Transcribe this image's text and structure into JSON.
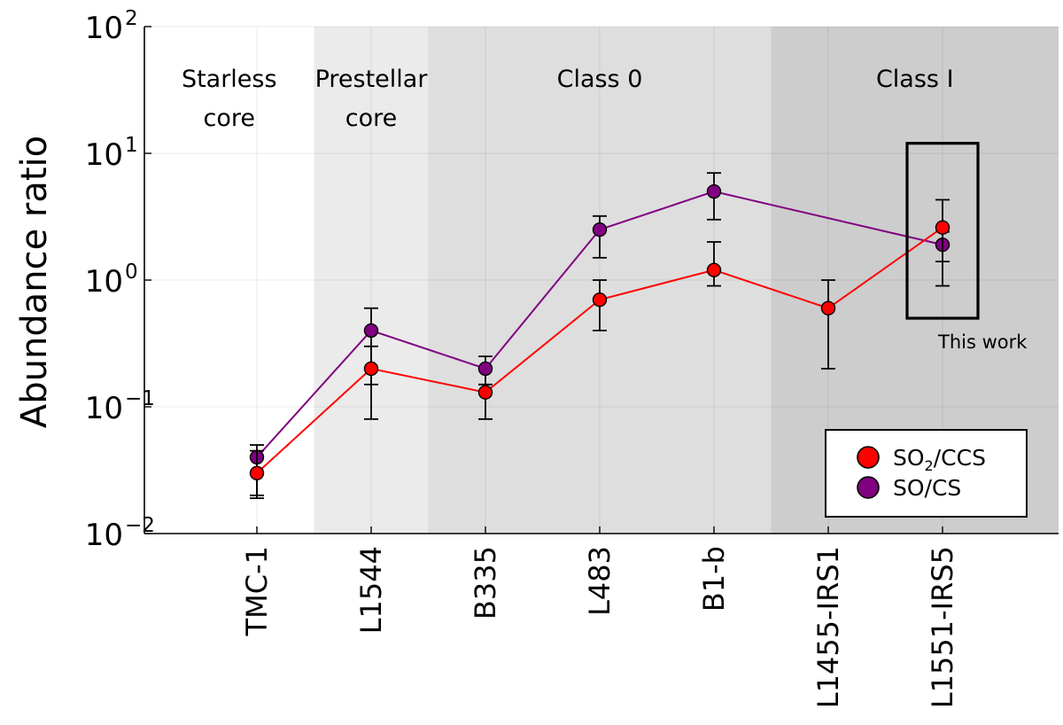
{
  "chart_data": {
    "type": "scatter",
    "title": "",
    "ylabel": "Abundance ratio",
    "xlabel": "",
    "y_scale": "log",
    "ylim": [
      0.01,
      100
    ],
    "y_ticks": [
      {
        "value": 0.01,
        "base": "10",
        "exp": "−2"
      },
      {
        "value": 0.1,
        "base": "10",
        "exp": "−1"
      },
      {
        "value": 1,
        "base": "10",
        "exp": "0"
      },
      {
        "value": 10,
        "base": "10",
        "exp": "1"
      },
      {
        "value": 100,
        "base": "10",
        "exp": "2"
      }
    ],
    "categories": [
      "TMC-1",
      "L1544",
      "B335",
      "L483",
      "B1-b",
      "L1455-IRS1",
      "L1551-IRS5"
    ],
    "grid": true,
    "stage_regions": [
      {
        "label_lines": [
          "Starless",
          "core"
        ],
        "from": "TMC-1",
        "to": "TMC-1",
        "color": "#ffffff"
      },
      {
        "label_lines": [
          "Prestellar",
          "core"
        ],
        "from": "L1544",
        "to": "L1544",
        "color": "#ebebeb"
      },
      {
        "label_lines": [
          "Class 0"
        ],
        "from": "B335",
        "to": "B1-b",
        "color": "#dedede"
      },
      {
        "label_lines": [
          "Class I"
        ],
        "from": "L1455-IRS1",
        "to": "L1551-IRS5",
        "color": "#cdcdcd"
      }
    ],
    "series": [
      {
        "name": "SO/CS",
        "legend_main": "SO/CS",
        "legend_sub": "",
        "legend_after": "",
        "color": "#800080",
        "points": [
          {
            "x": "TMC-1",
            "y": 0.04,
            "lo": 0.02,
            "hi": 0.05
          },
          {
            "x": "L1544",
            "y": 0.4,
            "lo": 0.15,
            "hi": 0.6
          },
          {
            "x": "B335",
            "y": 0.2,
            "lo": 0.15,
            "hi": 0.25
          },
          {
            "x": "L483",
            "y": 2.5,
            "lo": 1.5,
            "hi": 3.2
          },
          {
            "x": "B1-b",
            "y": 5.0,
            "lo": 3.0,
            "hi": 7.0
          },
          {
            "x": "L1551-IRS5",
            "y": 1.9,
            "lo": 1.4,
            "hi": 2.4
          }
        ]
      },
      {
        "name": "SO2/CCS",
        "legend_main": "SO",
        "legend_sub": "2",
        "legend_after": "/CCS",
        "color": "#ff0000",
        "points": [
          {
            "x": "TMC-1",
            "y": 0.03,
            "lo": 0.019,
            "hi": 0.045
          },
          {
            "x": "L1544",
            "y": 0.2,
            "lo": 0.08,
            "hi": 0.3
          },
          {
            "x": "B335",
            "y": 0.13,
            "lo": 0.08,
            "hi": 0.15
          },
          {
            "x": "L483",
            "y": 0.7,
            "lo": 0.4,
            "hi": 1.0
          },
          {
            "x": "B1-b",
            "y": 1.2,
            "lo": 0.9,
            "hi": 2.0
          },
          {
            "x": "L1455-IRS1",
            "y": 0.6,
            "lo": 0.2,
            "hi": 1.0
          },
          {
            "x": "L1551-IRS5",
            "y": 2.6,
            "lo": 0.9,
            "hi": 4.3
          }
        ]
      }
    ],
    "annotation": {
      "text": "This work",
      "target": "L1551-IRS5",
      "box_ylim": [
        0.5,
        12
      ]
    },
    "legend_position": "bottom-right"
  }
}
